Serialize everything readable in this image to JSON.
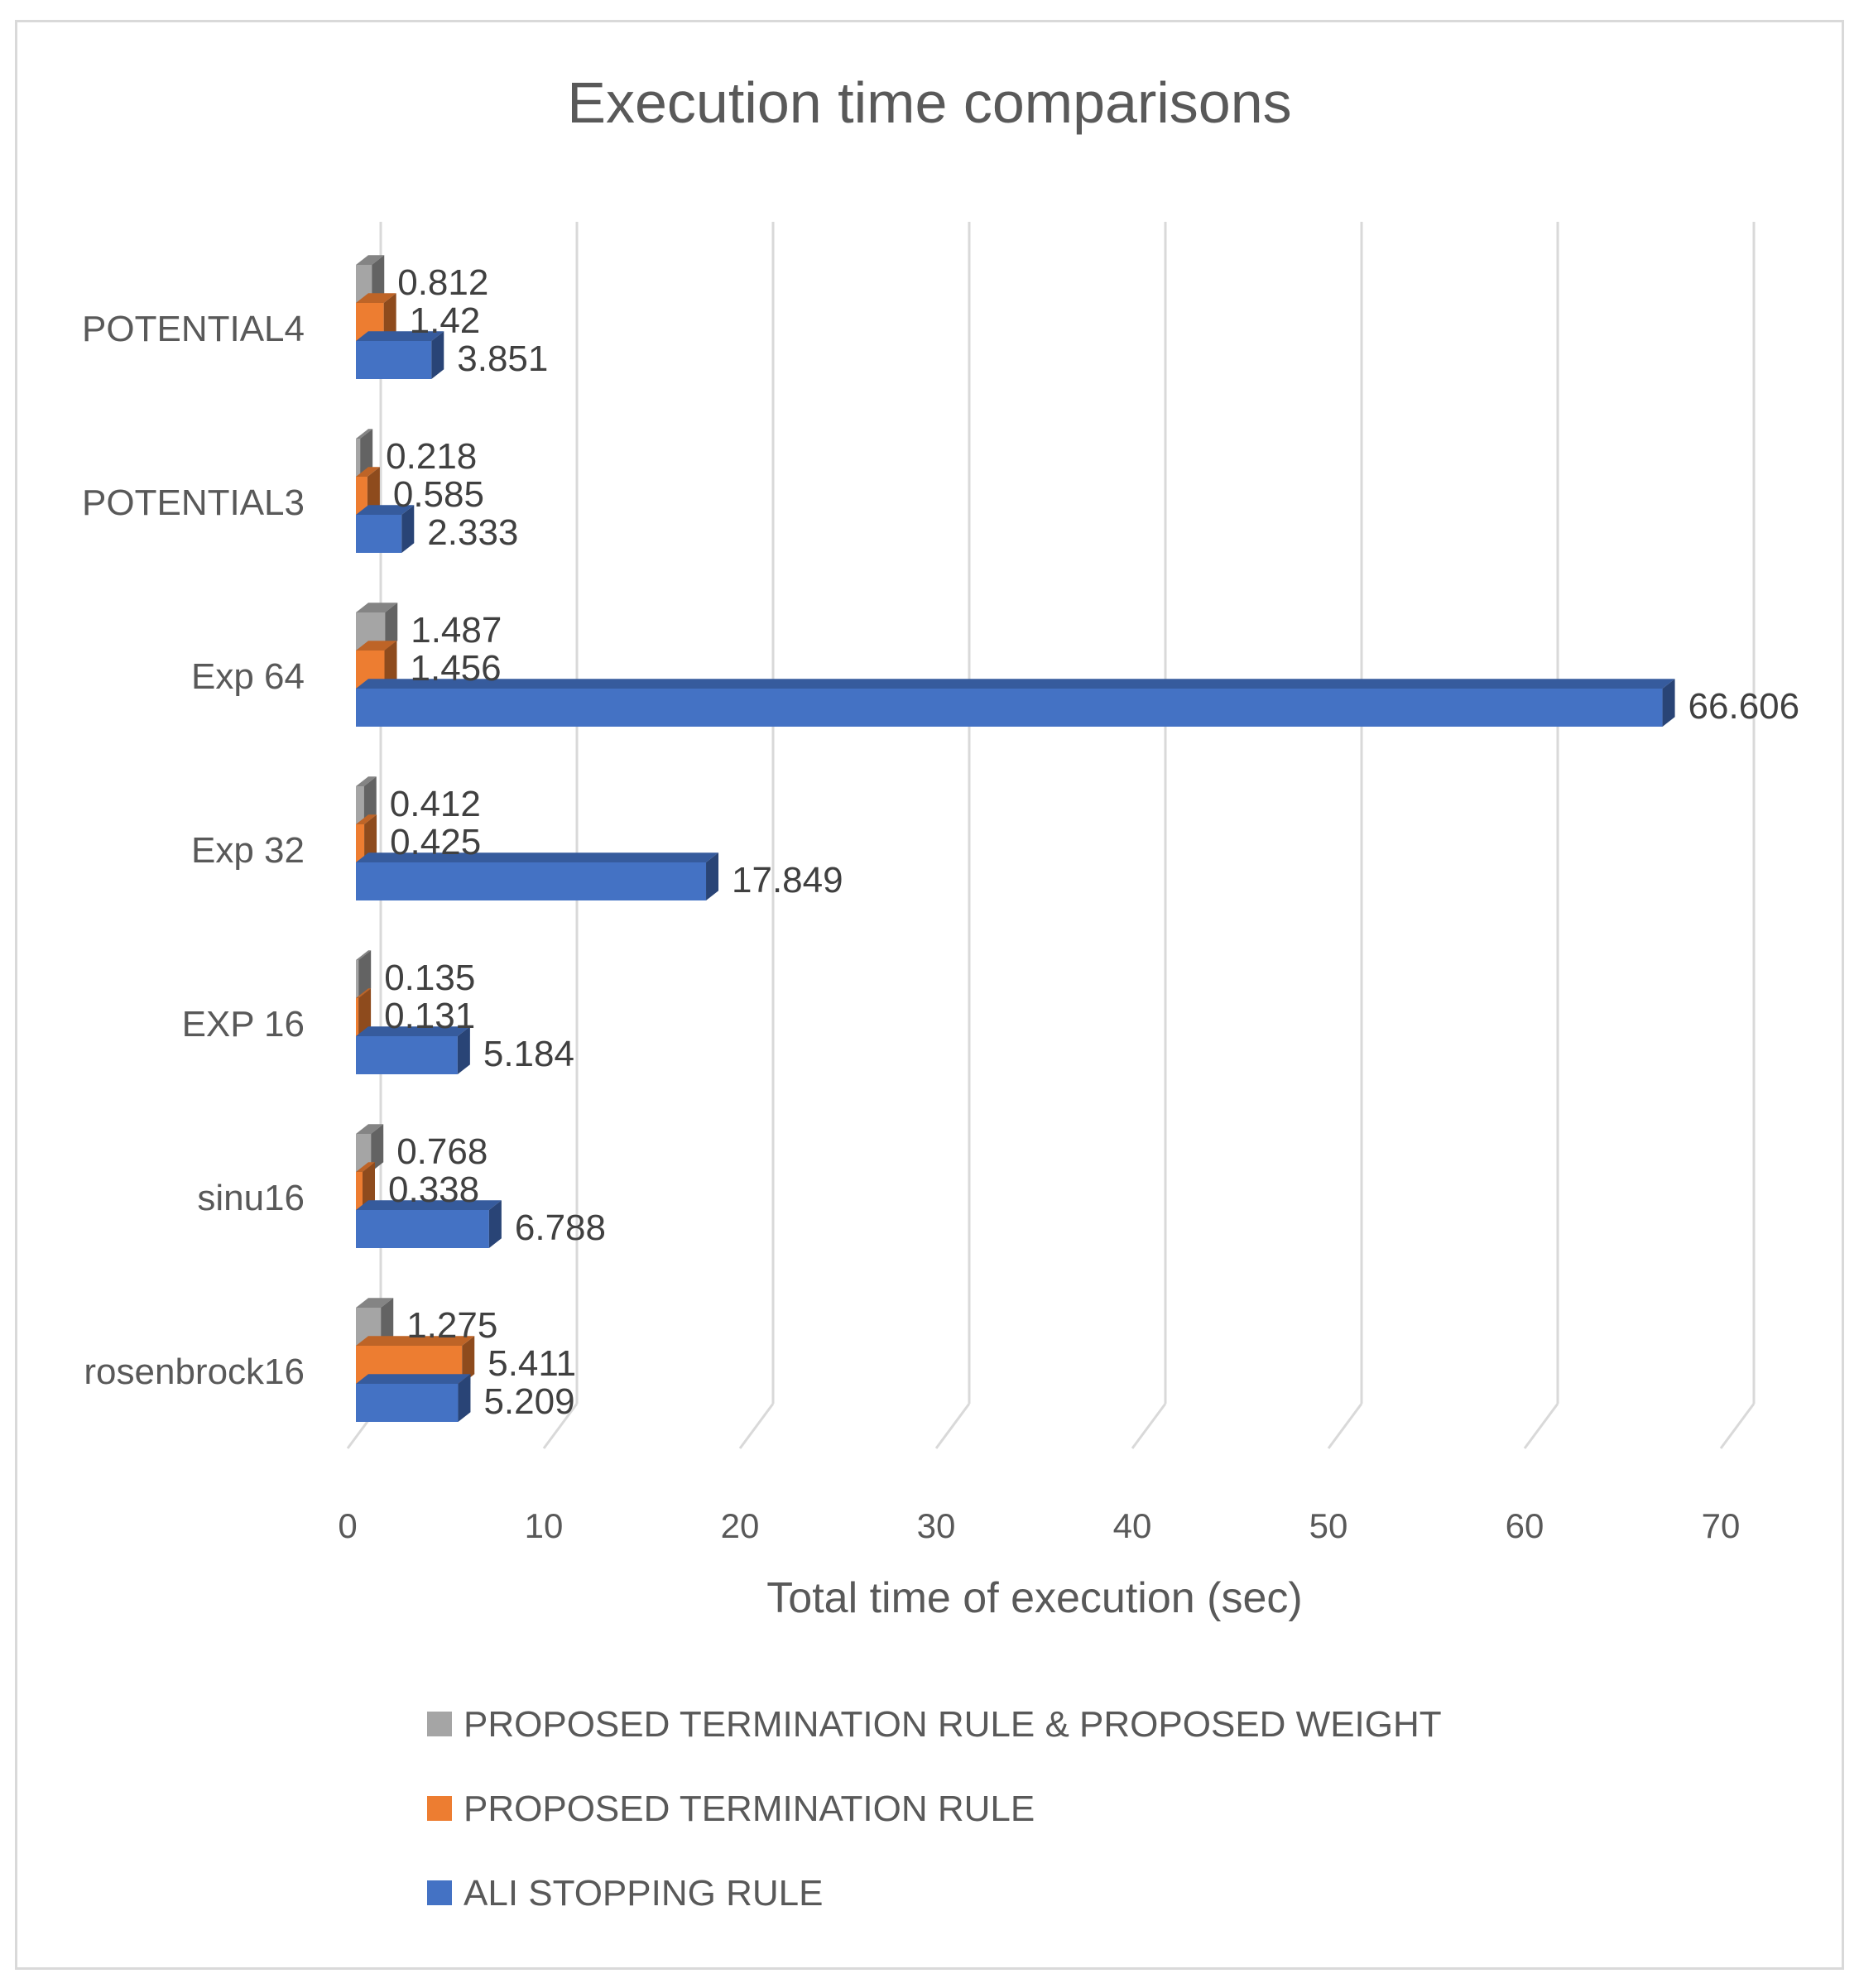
{
  "chart_data": {
    "type": "bar",
    "orientation": "horizontal",
    "style": "3d-clustered",
    "title": "Execution time comparisons",
    "xlabel": "Total time of execution (sec)",
    "ylabel": "",
    "xlim": [
      0,
      70
    ],
    "xticks": [
      "0",
      "10",
      "20",
      "30",
      "40",
      "50",
      "60",
      "70"
    ],
    "grid": true,
    "legend_position": "bottom",
    "categories": [
      "POTENTIAL4",
      "POTENTIAL3",
      "Exp 64",
      "Exp 32",
      "EXP 16",
      "sinu16",
      "rosenbrock16"
    ],
    "series": [
      {
        "name": "PROPOSED TERMINATION RULE & PROPOSED WEIGHT",
        "color": "#a5a5a5",
        "values": [
          0.812,
          0.218,
          1.487,
          0.412,
          0.135,
          0.768,
          1.275
        ],
        "labels": [
          "0.812",
          "0.218",
          "1.487",
          "0.412",
          "0.135",
          "0.768",
          "1.275"
        ]
      },
      {
        "name": "PROPOSED TERMINATION RULE",
        "color": "#ed7d31",
        "values": [
          1.42,
          0.585,
          1.456,
          0.425,
          0.131,
          0.338,
          5.411
        ],
        "labels": [
          "1.42",
          "0.585",
          "1.456",
          "0.425",
          "0.131",
          "0.338",
          "5.411"
        ]
      },
      {
        "name": "ALI STOPPING RULE",
        "color": "#4472c4",
        "values": [
          3.851,
          2.333,
          66.606,
          17.849,
          5.184,
          6.788,
          5.209
        ],
        "labels": [
          "3.851",
          "2.333",
          "66.606",
          "17.849",
          "5.184",
          "6.788",
          "5.209"
        ]
      }
    ]
  }
}
